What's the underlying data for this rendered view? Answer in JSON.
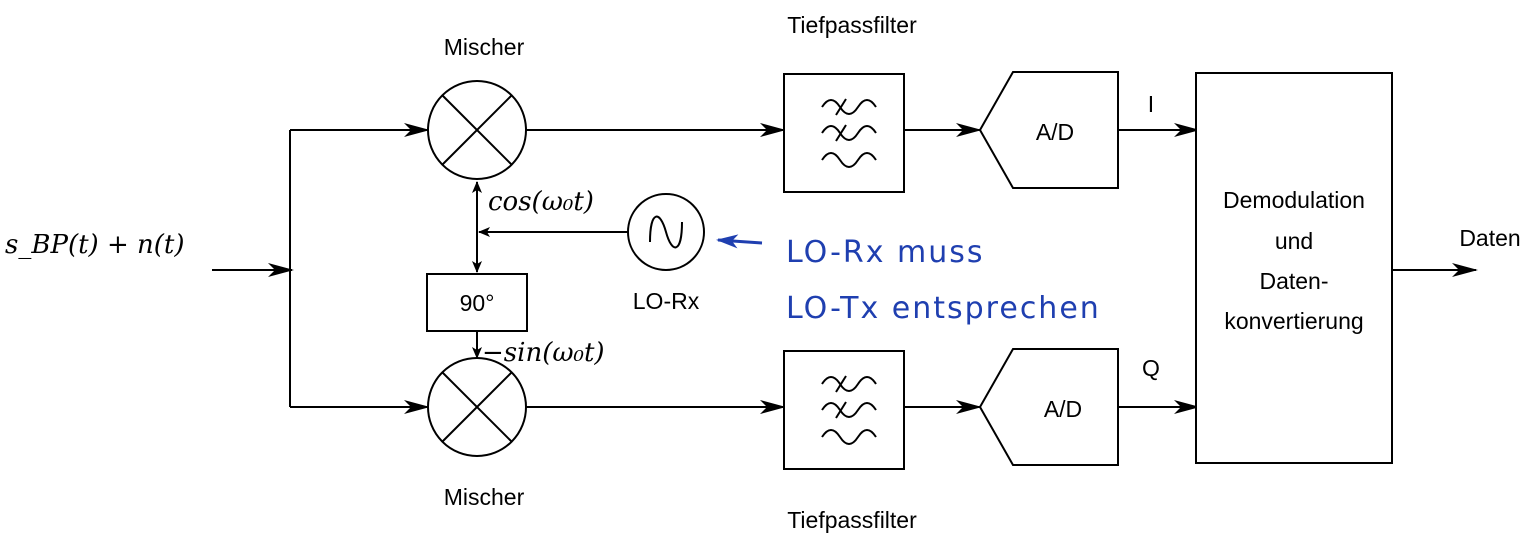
{
  "labels": {
    "mixer_top": "Mischer",
    "mixer_bottom": "Mischer",
    "lowpass_top": "Tiefpassfilter",
    "lowpass_bottom": "Tiefpassfilter",
    "adc_top": "A/D",
    "adc_bottom": "A/D",
    "i_channel": "I",
    "q_channel": "Q",
    "phase_shift": "90°",
    "oscillator": "LO-Rx",
    "demod_line1": "Demodulation",
    "demod_line2": "und",
    "demod_line3": "Daten-",
    "demod_line4": "konvertierung",
    "output": "Daten"
  },
  "math": {
    "input_signal": "s_BP(t) + n(t)",
    "cos_label": "cos(ω₀t)",
    "sin_label": "−sin(ω₀t)"
  },
  "annotation": {
    "line1": "LO-Rx muss",
    "line2": "LO-Tx entsprechen",
    "color": "#1f3fb0"
  }
}
